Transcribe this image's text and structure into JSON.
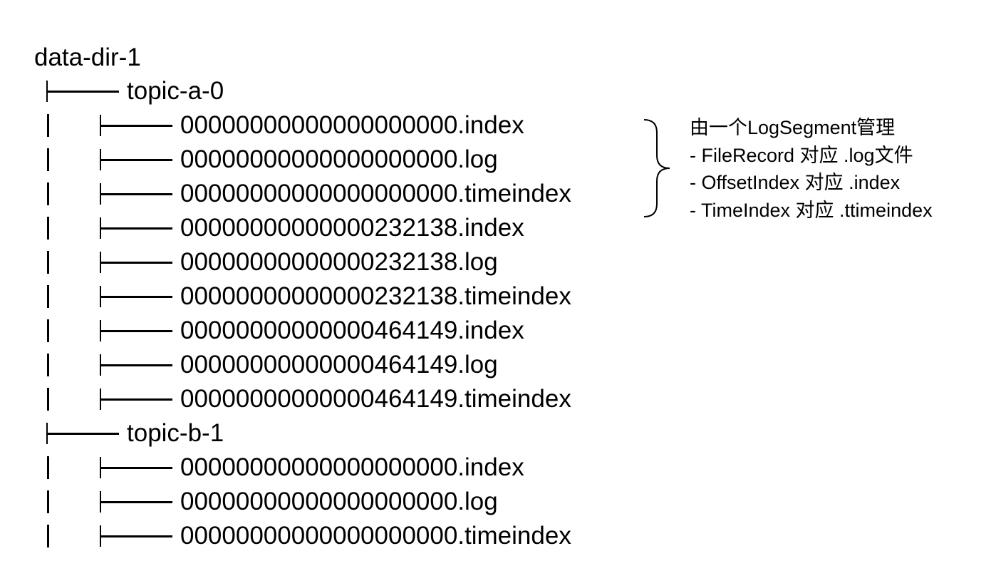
{
  "root": {
    "name": "data-dir-1",
    "topics": [
      {
        "name": "topic-a-0",
        "files": [
          "00000000000000000000.index",
          "00000000000000000000.log",
          "00000000000000000000.timeindex",
          "00000000000000232138.index",
          "00000000000000232138.log",
          "00000000000000232138.timeindex",
          "00000000000000464149.index",
          "00000000000000464149.log",
          "00000000000000464149.timeindex"
        ]
      },
      {
        "name": "topic-b-1",
        "files": [
          "00000000000000000000.index",
          "00000000000000000000.log",
          "00000000000000000000.timeindex"
        ]
      }
    ]
  },
  "annotation": {
    "title": "由一个LogSegment管理",
    "lines": [
      "- FileRecord 对应 .log文件",
      "- OffsetIndex 对应 .index",
      "- TimeIndex 对应 .ttimeindex"
    ]
  }
}
